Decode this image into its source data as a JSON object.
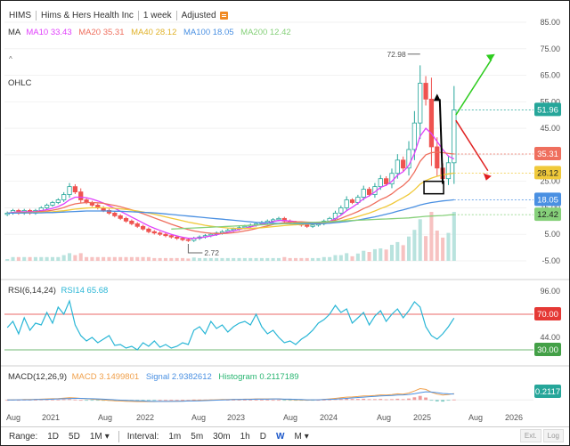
{
  "header": {
    "symbol": "HIMS",
    "name": "Hims & Hers Health Inc",
    "interval": "1 week",
    "adjust": "Adjusted"
  },
  "legend": {
    "ma_title": "MA",
    "ma10": "MA10 33.43",
    "ma20": "MA20 35.31",
    "ma40": "MA40 28.12",
    "ma100": "MA100 18.05",
    "ma200": "MA200 12.42",
    "ohlc": "OHLC",
    "collapse_glyph": "^"
  },
  "colors": {
    "up": "#26a69a",
    "down": "#ef5350",
    "ma10": "#e040fb",
    "ma20": "#ef6f5e",
    "ma40": "#f0c93a",
    "ma100": "#4a90e2",
    "ma200": "#86d07a",
    "rsi": "#29b6d6",
    "macd": "#f0a04b",
    "signal": "#4a90e2",
    "hist": "#2bb673"
  },
  "chart_data": [
    {
      "type": "candlestick",
      "name": "price",
      "x_ticks": [
        "Aug",
        "2021",
        "Aug",
        "2022",
        "Aug",
        "2023",
        "Aug",
        "2024",
        "Aug",
        "2025",
        "Aug",
        "2026"
      ],
      "y_ticks": [
        "85.00",
        "75.00",
        "65.00",
        "55.00",
        "45.00",
        "35.00",
        "25.00",
        "15.00",
        "5.00",
        "-5.00"
      ],
      "ylim": [
        -5,
        85
      ],
      "annotations": {
        "high": "72.98",
        "low": "2.72"
      },
      "price_labels": [
        {
          "text": "51.96",
          "value": 51.96,
          "color": "#26a69a"
        },
        {
          "text": "35.31",
          "value": 35.31,
          "color": "#ef6f5e"
        },
        {
          "text": "28.12",
          "value": 28.12,
          "color": "#f0c93a"
        },
        {
          "text": "18.05",
          "value": 18.05,
          "color": "#4a90e2"
        },
        {
          "text": "12.42",
          "value": 12.42,
          "color": "#86d07a"
        }
      ],
      "series": [
        {
          "name": "Close",
          "color": "#26a69a",
          "values": [
            13,
            14,
            13,
            14,
            13,
            14,
            15,
            16,
            17,
            18,
            20,
            23,
            21,
            18,
            17,
            16,
            15,
            14,
            13,
            12,
            11,
            10,
            9,
            8,
            7,
            6,
            5.5,
            5,
            4.5,
            4,
            3.5,
            3,
            2.72,
            3.5,
            4,
            4.5,
            5,
            5.5,
            6,
            6.5,
            7,
            7.5,
            8,
            8.5,
            9,
            9.5,
            10,
            10.5,
            11,
            10,
            9.5,
            9,
            8.5,
            8,
            8.5,
            9,
            10,
            11,
            13,
            15,
            18,
            17,
            19,
            22,
            20,
            23,
            26,
            24,
            28,
            33,
            30,
            37,
            47,
            62,
            56,
            38,
            30,
            26,
            32,
            51.96
          ]
        },
        {
          "name": "MA10",
          "color": "#e040fb",
          "values": [
            13,
            13.3,
            13.4,
            13.5,
            13.5,
            13.6,
            13.9,
            14.3,
            14.8,
            15.5,
            16.5,
            18,
            19,
            19,
            18.8,
            18.3,
            17.6,
            16.8,
            15.8,
            14.8,
            13.7,
            12.6,
            11.5,
            10.4,
            9.3,
            8.2,
            7.3,
            6.5,
            5.7,
            5,
            4.4,
            3.9,
            3.5,
            3.5,
            3.7,
            4,
            4.4,
            4.8,
            5.3,
            5.8,
            6.3,
            6.8,
            7.3,
            7.8,
            8.3,
            8.8,
            9.3,
            9.8,
            10.2,
            10.2,
            10,
            9.8,
            9.5,
            9.2,
            9,
            9,
            9.3,
            9.9,
            10.9,
            12.2,
            13.9,
            15.2,
            16.7,
            18.4,
            19.5,
            21,
            22.7,
            23.5,
            25,
            27.3,
            28.6,
            31,
            35.5,
            42,
            45,
            43,
            40,
            37,
            34.5,
            33.43
          ]
        },
        {
          "name": "MA20",
          "color": "#ef6f5e",
          "values": [
            13,
            13.1,
            13.2,
            13.3,
            13.3,
            13.4,
            13.6,
            13.8,
            14.1,
            14.5,
            15.1,
            15.9,
            16.5,
            16.8,
            17,
            17,
            16.9,
            16.7,
            16.3,
            15.9,
            15.4,
            14.8,
            14.2,
            13.5,
            12.8,
            12,
            11.2,
            10.4,
            9.6,
            8.8,
            8.1,
            7.4,
            6.8,
            6.3,
            5.9,
            5.6,
            5.4,
            5.3,
            5.3,
            5.4,
            5.6,
            5.9,
            6.3,
            6.7,
            7.2,
            7.7,
            8.2,
            8.7,
            9.1,
            9.4,
            9.6,
            9.7,
            9.7,
            9.6,
            9.5,
            9.4,
            9.5,
            9.8,
            10.3,
            11,
            11.9,
            12.7,
            13.6,
            14.7,
            15.6,
            16.8,
            18.1,
            19,
            20.3,
            22,
            23.4,
            25.4,
            28.5,
            32.5,
            35,
            35.8,
            36,
            35.8,
            35.5,
            35.31
          ]
        },
        {
          "name": "MA40",
          "color": "#f0c93a",
          "values": [
            13,
            13,
            13.1,
            13.1,
            13.2,
            13.2,
            13.3,
            13.4,
            13.5,
            13.7,
            13.9,
            14.2,
            14.5,
            14.7,
            14.9,
            15,
            15,
            15,
            14.9,
            14.8,
            14.6,
            14.4,
            14.1,
            13.8,
            13.4,
            13,
            12.6,
            12.1,
            11.6,
            11.1,
            10.6,
            10.1,
            9.6,
            9.2,
            8.8,
            8.4,
            8.1,
            7.8,
            7.6,
            7.4,
            7.3,
            7.2,
            7.2,
            7.3,
            7.4,
            7.5,
            7.7,
            7.9,
            8.1,
            8.3,
            8.5,
            8.6,
            8.7,
            8.8,
            8.9,
            9,
            9.2,
            9.4,
            9.7,
            10.1,
            10.6,
            11.1,
            11.7,
            12.4,
            13,
            13.8,
            14.7,
            15.5,
            16.5,
            17.7,
            18.8,
            20.1,
            21.8,
            23.9,
            25.3,
            26.2,
            26.9,
            27.4,
            27.8,
            28.12
          ]
        },
        {
          "name": "MA100",
          "color": "#4a90e2",
          "values": [
            13,
            13,
            13,
            13.1,
            13.1,
            13.1,
            13.1,
            13.2,
            13.2,
            13.3,
            13.4,
            13.5,
            13.6,
            13.7,
            13.8,
            13.8,
            13.8,
            13.8,
            13.8,
            13.7,
            13.7,
            13.6,
            13.5,
            13.4,
            13.3,
            13.2,
            13.1,
            12.9,
            12.7,
            12.5,
            12.3,
            12.1,
            11.9,
            11.7,
            11.5,
            11.3,
            11.1,
            10.9,
            10.7,
            10.5,
            10.3,
            10.1,
            9.9,
            9.7,
            9.5,
            9.4,
            9.3,
            9.2,
            9.1,
            9,
            9,
            9,
            9,
            9,
            9,
            9,
            9.1,
            9.2,
            9.4,
            9.6,
            9.8,
            10.1,
            10.4,
            10.8,
            11.2,
            11.6,
            12.1,
            12.6,
            13.1,
            13.7,
            14.2,
            14.8,
            15.4,
            16.1,
            16.6,
            17,
            17.3,
            17.6,
            17.8,
            18.05
          ]
        },
        {
          "name": "MA200",
          "color": "#86d07a",
          "values": [
            null,
            null,
            null,
            null,
            null,
            null,
            null,
            null,
            null,
            null,
            null,
            null,
            null,
            null,
            null,
            null,
            null,
            null,
            null,
            null,
            null,
            null,
            null,
            null,
            null,
            null,
            null,
            null,
            null,
            7,
            7.1,
            7.2,
            7.3,
            7.4,
            7.5,
            7.6,
            7.7,
            7.8,
            7.9,
            8,
            8.1,
            8.2,
            8.3,
            8.4,
            8.5,
            8.6,
            8.7,
            8.8,
            8.9,
            9,
            9.1,
            9.2,
            9.3,
            9.4,
            9.5,
            9.6,
            9.7,
            9.8,
            9.9,
            10,
            10.1,
            10.2,
            10.3,
            10.4,
            10.5,
            10.6,
            10.7,
            10.8,
            10.9,
            11,
            11.1,
            11.2,
            11.4,
            11.6,
            11.8,
            11.9,
            12,
            12.1,
            12.3,
            12.42
          ]
        }
      ]
    },
    {
      "type": "line",
      "name": "rsi",
      "title": "RSI(6,14,24)",
      "legend": "RSI14 65.68",
      "y_ticks": [
        "96.00",
        "70.00",
        "44.00",
        "30.00"
      ],
      "ylim": [
        18,
        100
      ],
      "levels": [
        {
          "text": "70.00",
          "value": 70,
          "color": "#e53935"
        },
        {
          "text": "30.00",
          "value": 30,
          "color": "#43a047"
        }
      ],
      "values": [
        55,
        62,
        48,
        66,
        52,
        60,
        58,
        72,
        60,
        78,
        70,
        85,
        58,
        46,
        40,
        44,
        38,
        42,
        46,
        35,
        36,
        32,
        34,
        30,
        38,
        34,
        40,
        33,
        36,
        32,
        34,
        38,
        36,
        52,
        56,
        48,
        62,
        54,
        58,
        50,
        56,
        60,
        62,
        58,
        70,
        56,
        48,
        52,
        44,
        38,
        40,
        36,
        42,
        46,
        52,
        60,
        64,
        70,
        80,
        72,
        76,
        60,
        66,
        72,
        58,
        68,
        74,
        62,
        70,
        76,
        66,
        74,
        84,
        78,
        56,
        46,
        42,
        48,
        56,
        65.68
      ]
    },
    {
      "type": "line",
      "name": "macd",
      "title": "MACD(12,26,9)",
      "legend_macd": "MACD 3.1499801",
      "legend_signal": "Signal 2.9382612",
      "legend_hist": "Histogram 0.2117189",
      "value_label": "0.2117",
      "ylim": [
        -6,
        8
      ],
      "macd": [
        0,
        0.1,
        0.1,
        0.2,
        0.2,
        0.3,
        0.4,
        0.5,
        0.6,
        0.7,
        0.9,
        1.1,
        1,
        0.8,
        0.6,
        0.4,
        0.2,
        0,
        -0.2,
        -0.4,
        -0.5,
        -0.6,
        -0.7,
        -0.8,
        -0.8,
        -0.8,
        -0.8,
        -0.7,
        -0.7,
        -0.6,
        -0.6,
        -0.5,
        -0.5,
        -0.3,
        -0.2,
        -0.1,
        0,
        0.1,
        0.2,
        0.2,
        0.3,
        0.3,
        0.4,
        0.4,
        0.5,
        0.5,
        0.5,
        0.5,
        0.5,
        0.3,
        0.2,
        0.1,
        0,
        -0.1,
        0,
        0.1,
        0.3,
        0.5,
        0.8,
        1.1,
        1.4,
        1.5,
        1.7,
        2,
        2,
        2.2,
        2.5,
        2.4,
        2.6,
        3,
        2.9,
        3.4,
        4.4,
        5.6,
        5.2,
        3.8,
        2.9,
        2.4,
        2.7,
        3.15
      ],
      "signal": [
        0,
        0,
        0.1,
        0.1,
        0.1,
        0.2,
        0.2,
        0.3,
        0.4,
        0.5,
        0.6,
        0.7,
        0.8,
        0.8,
        0.7,
        0.6,
        0.5,
        0.4,
        0.2,
        0.1,
        -0.1,
        -0.2,
        -0.3,
        -0.4,
        -0.5,
        -0.6,
        -0.7,
        -0.7,
        -0.7,
        -0.7,
        -0.6,
        -0.6,
        -0.5,
        -0.5,
        -0.4,
        -0.3,
        -0.2,
        -0.1,
        0,
        0.1,
        0.2,
        0.2,
        0.3,
        0.3,
        0.4,
        0.4,
        0.4,
        0.5,
        0.5,
        0.4,
        0.4,
        0.3,
        0.2,
        0.1,
        0.1,
        0.1,
        0.2,
        0.3,
        0.4,
        0.6,
        0.8,
        1,
        1.2,
        1.4,
        1.6,
        1.8,
        2,
        2.1,
        2.2,
        2.4,
        2.5,
        2.7,
        3.1,
        3.6,
        4,
        3.9,
        3.6,
        3.2,
        3,
        2.94
      ]
    }
  ],
  "x_axis_labels": [
    "Aug",
    "2021",
    "Aug",
    "2022",
    "Aug",
    "2023",
    "Aug",
    "2024",
    "Aug",
    "2025",
    "Aug",
    "2026"
  ],
  "footer": {
    "range_label": "Range:",
    "ranges": [
      "1D",
      "5D",
      "1M"
    ],
    "range_dropdown_glyph": "▾",
    "interval_label": "Interval:",
    "intervals": [
      "1m",
      "5m",
      "30m",
      "1h",
      "D",
      "W",
      "M"
    ],
    "selected_interval": "W",
    "interval_dropdown_glyph": "▾",
    "ext": "Ext.",
    "log": "Log"
  }
}
